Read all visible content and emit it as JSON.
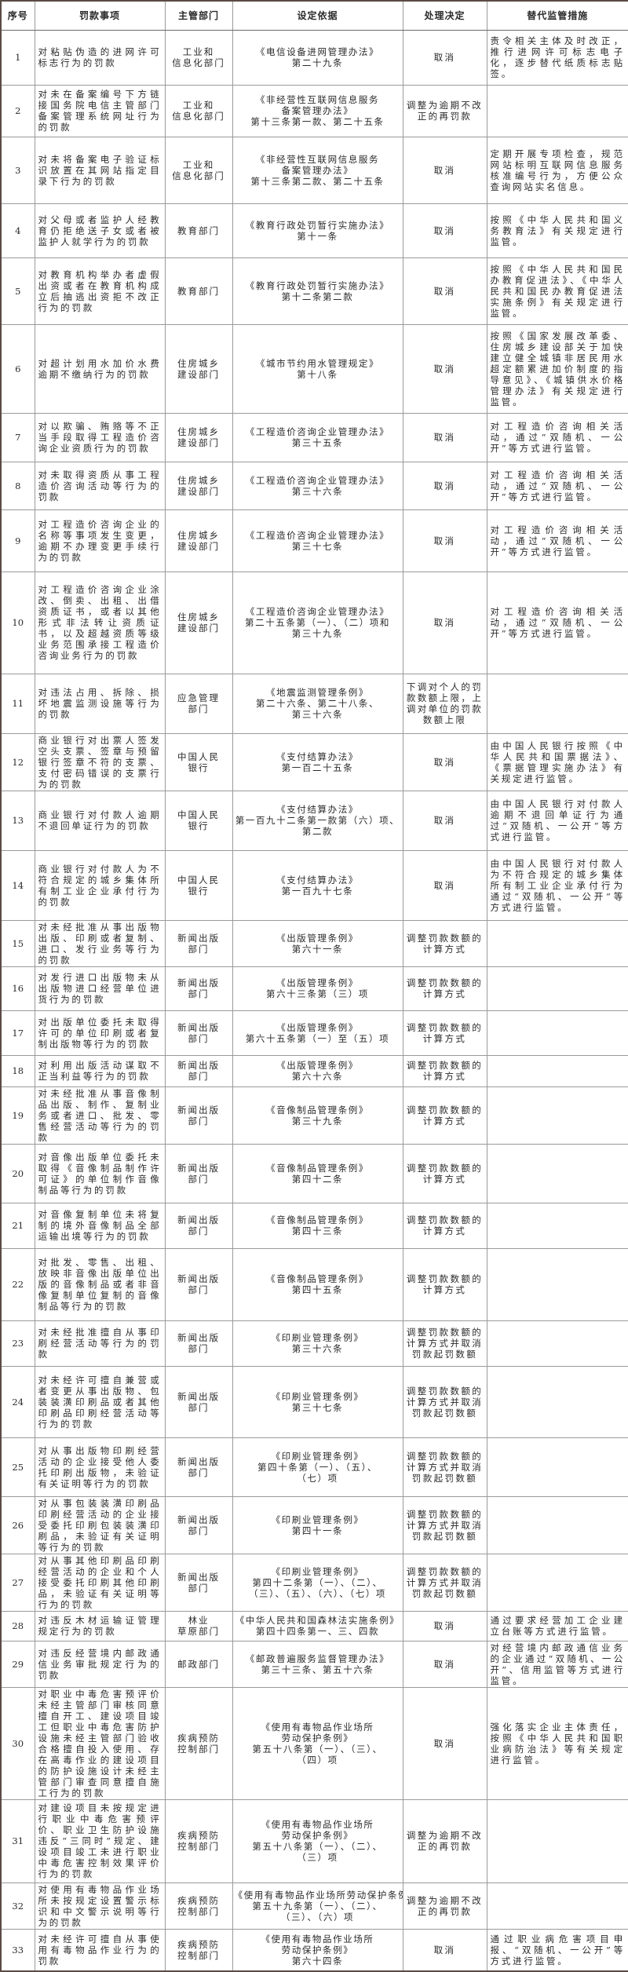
{
  "headers": {
    "no": "序号",
    "item": "罚款事项",
    "dept": "主管部门",
    "basis": "设定依据",
    "decision": "处理决定",
    "measure": "替代监管措施"
  },
  "rows": [
    {
      "no": "1",
      "item": "对粘贴伪造的进网许可标志行为的罚款",
      "dept": "工业和\n信息化部门",
      "basis": "《电信设备进网管理办法》\n第二十九条",
      "decision": "取消",
      "measure": "责令相关主体及时改正，推行进网许可标志电子化，逐步替代纸质标志贴签。"
    },
    {
      "no": "2",
      "item": "对未在备案编号下方链接国务院电信主管部门备案管理系统网址行为的罚款",
      "dept": "工业和\n信息化部门",
      "basis": "《非经营性互联网信息服务\n备案管理办法》\n第十三条第一款、第二十五条",
      "decision": "调整为逾期不改正的再罚款",
      "measure": ""
    },
    {
      "no": "3",
      "item": "对未将备案电子验证标识放置在其网站指定目录下行为的罚款",
      "dept": "工业和\n信息化部门",
      "basis": "《非经营性互联网信息服务\n备案管理办法》\n第十三条第二款、第二十五条",
      "decision": "取消",
      "measure": "定期开展专项检查，规范网站标明互联网信息服务核准编号行为，方便公众查询网站实名信息。"
    },
    {
      "no": "4",
      "item": "对父母或者监护人经教育仍拒绝送子女或者被监护人就学行为的罚款",
      "dept": "教育部门",
      "basis": "《教育行政处罚暂行实施办法》\n第十一条",
      "decision": "取消",
      "measure": "按照《中华人民共和国义务教育法》有关规定进行监管。"
    },
    {
      "no": "5",
      "item": "对教育机构举办者虚假出资或者在教育机构成立后抽逃出资拒不改正行为的罚款",
      "dept": "教育部门",
      "basis": "《教育行政处罚暂行实施办法》\n第十二条第二款",
      "decision": "取消",
      "measure": "按照《中华人民共和国民办教育促进法》、《中华人民共和国民办教育促进法实施条例》有关规定进行监管。"
    },
    {
      "no": "6",
      "item": "对超计划用水加价水费逾期不缴纳行为的罚款",
      "dept": "住房城乡\n建设部门",
      "basis": "《城市节约用水管理规定》\n第十八条",
      "decision": "取消",
      "measure": "按照《国家发展改革委、住房城乡建设部关于加快建立健全城镇非居民用水超定额累进加价制度的指导意见》、《城镇供水价格管理办法》有关规定进行监管。"
    },
    {
      "no": "7",
      "item": "对以欺骗、贿赂等不正当手段取得工程造价咨询企业资质行为的罚款",
      "dept": "住房城乡\n建设部门",
      "basis": "《工程造价咨询企业管理办法》\n第三十五条",
      "decision": "取消",
      "measure": "对工程造价咨询相关活动，通过“双随机、一公开”等方式进行监管。"
    },
    {
      "no": "8",
      "item": "对未取得资质从事工程造价咨询活动等行为的罚款",
      "dept": "住房城乡\n建设部门",
      "basis": "《工程造价咨询企业管理办法》\n第三十六条",
      "decision": "取消",
      "measure": "对工程造价咨询相关活动，通过“双随机、一公开”等方式进行监管。"
    },
    {
      "no": "9",
      "item": "对工程造价咨询企业的名称等事项发生变更，逾期不办理变更手续行为的罚款",
      "dept": "住房城乡\n建设部门",
      "basis": "《工程造价咨询企业管理办法》\n第三十七条",
      "decision": "取消",
      "measure": "对工程造价咨询相关活动，通过“双随机、一公开”等方式进行监管。"
    },
    {
      "no": "10",
      "item": "对工程造价咨询企业涂改、倒卖、出租、出借资质证书，或者以其他形式非法转让资质证书，以及超越资质等级业务范围承接工程造价咨询业务行为的罚款",
      "dept": "住房城乡\n建设部门",
      "basis": "《工程造价咨询企业管理办法》\n第二十五条第（一）、（二）项和\n第三十九条",
      "decision": "取消",
      "measure": "对工程造价咨询相关活动，通过“双随机、一公开”等方式进行监管。"
    },
    {
      "no": "11",
      "item": "对违法占用、拆除、损坏地震监测设施等行为的罚款",
      "dept": "应急管理\n部门",
      "basis": "《地震监测管理条例》\n第二十六条、第二十八条、\n第三十六条",
      "decision": "下调对个人的罚款数额上限，上调对单位的罚款数额上限",
      "measure": ""
    },
    {
      "no": "12",
      "item": "商业银行对出票人签发空头支票、签章与预留银行签章不符的支票、支付密码错误的支票行为的罚款",
      "dept": "中国人民\n银行",
      "basis": "《支付结算办法》\n第一百二十五条",
      "decision": "取消",
      "measure": "由中国人民银行按照《中华人民共和国票据法》、《票据管理实施办法》有关规定进行监管。"
    },
    {
      "no": "13",
      "item": "商业银行对付款人逾期不退回单证行为的罚款",
      "dept": "中国人民\n银行",
      "basis": "《支付结算办法》\n第一百九十二条第一款第（六）项、\n第二款",
      "decision": "取消",
      "measure": "由中国人民银行对付款人逾期不退回单证行为通过“双随机、一公开”等方式进行监管。"
    },
    {
      "no": "14",
      "item": "商业银行对付款人为不符合规定的城乡集体所有制工业企业承付行为的罚款",
      "dept": "中国人民\n银行",
      "basis": "《支付结算办法》\n第一百九十七条",
      "decision": "取消",
      "measure": "由中国人民银行对付款人为不符合规定的城乡集体所有制工业企业承付行为通过“双随机、一公开”等方式进行监管。"
    },
    {
      "no": "15",
      "item": "对未经批准从事出版物出版、印刷或者复制、进口、发行业务等行为的罚款",
      "dept": "新闻出版\n部门",
      "basis": "《出版管理条例》\n第六十一条",
      "decision": "调整罚款数额的计算方式",
      "measure": ""
    },
    {
      "no": "16",
      "item": "对发行进口出版物未从出版物进口经营单位进货行为的罚款",
      "dept": "新闻出版\n部门",
      "basis": "《出版管理条例》\n第六十三条第（三）项",
      "decision": "调整罚款数额的计算方式",
      "measure": ""
    },
    {
      "no": "17",
      "item": "对出版单位委托未取得许可的单位印刷或者复制出版物等行为的罚款",
      "dept": "新闻出版\n部门",
      "basis": "《出版管理条例》\n第六十五条第（一）至（五）项",
      "decision": "调整罚款数额的计算方式",
      "measure": ""
    },
    {
      "no": "18",
      "item": "对利用出版活动谋取不正当利益等行为的罚款",
      "dept": "新闻出版\n部门",
      "basis": "《出版管理条例》\n第六十六条",
      "decision": "调整罚款数额的计算方式",
      "measure": ""
    },
    {
      "no": "19",
      "item": "对未经批准从事音像制品出版、制作、复制业务或者进口、批发、零售经营活动等行为的罚款",
      "dept": "新闻出版\n部门",
      "basis": "《音像制品管理条例》\n第三十九条",
      "decision": "调整罚款数额的计算方式",
      "measure": ""
    },
    {
      "no": "20",
      "item": "对音像出版单位委托未取得《音像制品制作许可证》的单位制作音像制品等行为的罚款",
      "dept": "新闻出版\n部门",
      "basis": "《音像制品管理条例》\n第四十二条",
      "decision": "调整罚款数额的计算方式",
      "measure": ""
    },
    {
      "no": "21",
      "item": "对音像复制单位未将复制的境外音像制品全部运输出境等行为的罚款",
      "dept": "新闻出版\n部门",
      "basis": "《音像制品管理条例》\n第四十三条",
      "decision": "调整罚款数额的计算方式",
      "measure": ""
    },
    {
      "no": "22",
      "item": "对批发、零售、出租、放映非音像出版单位出版的音像制品或者非音像复制单位复制的音像制品等行为的罚款",
      "dept": "新闻出版\n部门",
      "basis": "《音像制品管理条例》\n第四十五条",
      "decision": "调整罚款数额的计算方式",
      "measure": ""
    },
    {
      "no": "23",
      "item": "对未经批准擅自从事印刷经营活动等行为的罚款",
      "dept": "新闻出版\n部门",
      "basis": "《印刷业管理条例》\n第三十六条",
      "decision": "调整罚款数额的计算方式并取消罚款起罚数额",
      "measure": ""
    },
    {
      "no": "24",
      "item": "对未经许可擅自兼营或者变更从事出版物、包装装潢印刷品或者其他印刷品印刷经营活动等行为的罚款",
      "dept": "新闻出版\n部门",
      "basis": "《印刷业管理条例》\n第三十七条",
      "decision": "调整罚款数额的计算方式并取消罚款起罚数额",
      "measure": ""
    },
    {
      "no": "25",
      "item": "对从事出版物印刷经营活动的企业接受他人委托印刷出版物，未验证有关证明等行为的罚款",
      "dept": "新闻出版\n部门",
      "basis": "《印刷业管理条例》\n第四十条第（一）、（五）、\n（七）项",
      "decision": "调整罚款数额的计算方式并取消罚款起罚数额",
      "measure": ""
    },
    {
      "no": "26",
      "item": "对从事包装装潢印刷品印刷经营活动的企业接受委托印刷包装装潢印刷品，未验证有关证明等行为的罚款",
      "dept": "新闻出版\n部门",
      "basis": "《印刷业管理条例》\n第四十一条",
      "decision": "调整罚款数额的计算方式并取消罚款起罚数额",
      "measure": ""
    },
    {
      "no": "27",
      "item": "对从事其他印刷品印刷经营活动的企业和个人接受委托印刷其他印刷品，未验证有关证明等行为的罚款",
      "dept": "新闻出版\n部门",
      "basis": "《印刷业管理条例》\n第四十二条第（一）、（二）、\n（三）、（五）、（六）、（七）项",
      "decision": "调整罚款数额的计算方式并取消罚款起罚数额",
      "measure": ""
    },
    {
      "no": "28",
      "item": "对违反木材运输证管理规定行为的罚款",
      "dept": "林业\n草原部门",
      "basis": "《中华人民共和国森林法实施条例》\n第四十四条第一、三、四款",
      "decision": "取消",
      "measure": "通过要求经营加工企业建立台账等方式进行监管。"
    },
    {
      "no": "29",
      "item": "对违反经营境内邮政通信业务审批规定行为的罚款",
      "dept": "邮政部门",
      "basis": "《邮政普遍服务监督管理办法》\n第三十三条、第五十六条",
      "decision": "取消",
      "measure": "对经营境内邮政通信业务的企业通过“双随机、一公开”、信用监管等方式进行监管。"
    },
    {
      "no": "30",
      "item": "对职业中毒危害预评价未经主管部门审核同意擅自开工、建设项目竣工但职业中毒危害防护设施未经主管部门验收合格擅自投入使用、存在高毒作业的建设项目的防护设施设计未经主管部门审查同意擅自施工行为的罚款",
      "dept": "疾病预防\n控制部门",
      "basis": "《使用有毒物品作业场所\n劳动保护条例》\n第五十八条第（一）、（三）、\n（四）项",
      "decision": "取消",
      "measure": "强化落实企业主体责任，按照《中华人民共和国职业病防治法》等有关规定进行监管。"
    },
    {
      "no": "31",
      "item": "对建设项目未按规定进行职业中毒危害预评价、职业卫生防护设施违反“三同时”规定、建设项目竣工未进行职业中毒危害控制效果评价行为的罚款",
      "dept": "疾病预防\n控制部门",
      "basis": "《使用有毒物品作业场所\n劳动保护条例》\n第五十八条第（一）、（二）、\n（三）项",
      "decision": "调整为逾期不改正的再罚款",
      "measure": ""
    },
    {
      "no": "32",
      "item": "对使用有毒物品作业场所未按规定设置警示标识和中文警示说明等行为的罚款",
      "dept": "疾病预防\n控制部门",
      "basis": "《使用有毒物品作业场所劳动保护条例》\n第五十九条第（一）、（二）、\n（三）、（六）项",
      "decision": "调整为逾期不改正的再罚款",
      "measure": ""
    },
    {
      "no": "33",
      "item": "对未经许可擅自从事使用有毒物品作业行为的罚款",
      "dept": "疾病预防\n控制部门",
      "basis": "《使用有毒物品作业场所\n劳动保护条例》\n第六十四条",
      "decision": "取消",
      "measure": "通过职业病危害项目申报、“双随机、一公开”等方式进行监管。"
    }
  ]
}
